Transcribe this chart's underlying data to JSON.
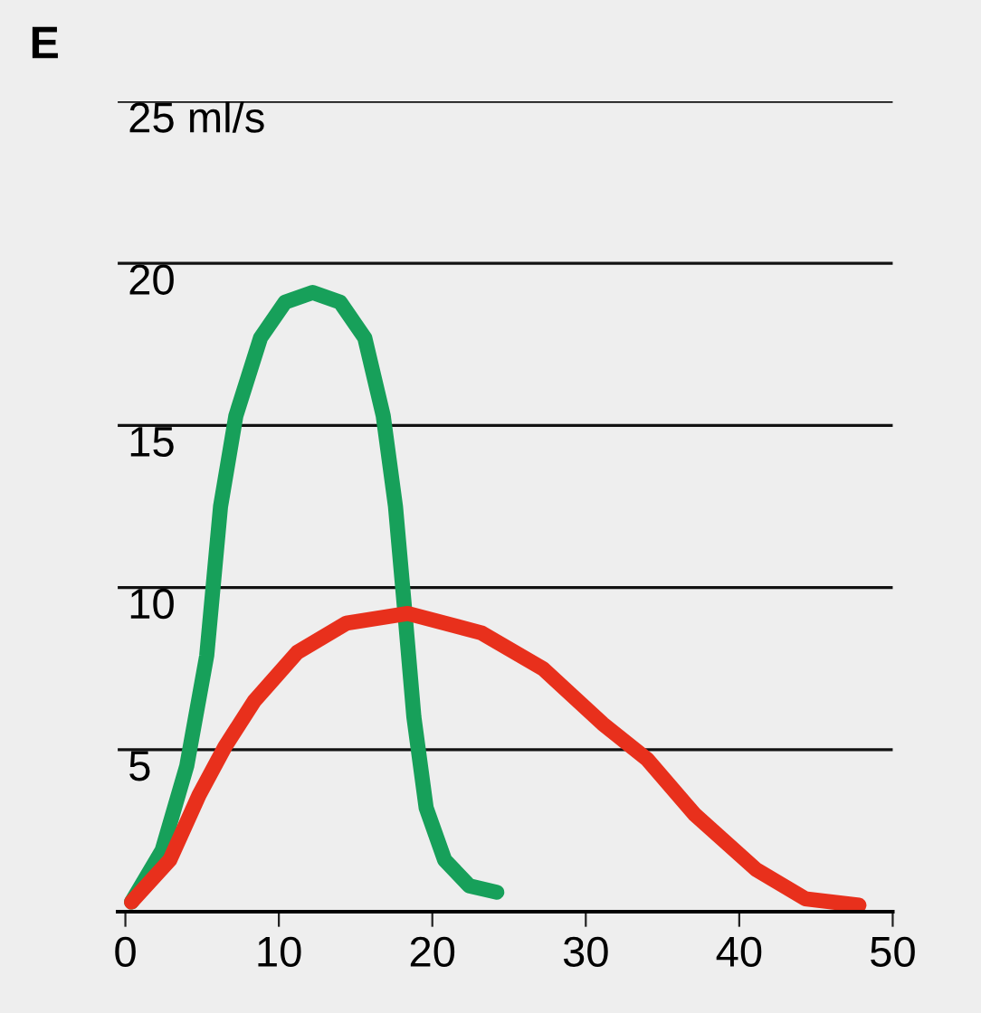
{
  "chart_data": {
    "type": "line",
    "title": "E",
    "xlim": [
      -0.5,
      50
    ],
    "xticks": [
      0,
      10,
      20,
      30,
      40,
      50
    ],
    "ylim": [
      0,
      25
    ],
    "yticks": [
      5,
      10,
      15,
      20,
      {
        "value": 25,
        "label": "25 ml/s"
      }
    ],
    "grid": "y",
    "legend": false,
    "marker": "none",
    "line_style": "solid",
    "series": [
      {
        "color": "#17a05a",
        "x": [
          0.4,
          2.4,
          4.0,
          5.3,
          6.2,
          7.2,
          8.8,
          10.4,
          12.2,
          14.0,
          15.6,
          16.8,
          17.6,
          18.2,
          18.8,
          19.6,
          20.8,
          22.4,
          24.2
        ],
        "values": [
          0.3,
          1.9,
          4.5,
          7.9,
          12.5,
          15.3,
          17.7,
          18.8,
          19.1,
          18.8,
          17.7,
          15.3,
          12.5,
          9.3,
          6.0,
          3.2,
          1.6,
          0.8,
          0.6
        ]
      },
      {
        "color": "#e8301c",
        "x": [
          0.4,
          2.9,
          4.8,
          6.5,
          8.4,
          11.2,
          14.4,
          18.4,
          23.2,
          27.2,
          31.1,
          34.0,
          37.1,
          41.1,
          44.3,
          47.8
        ],
        "values": [
          0.3,
          1.6,
          3.6,
          5.1,
          6.5,
          8.0,
          8.9,
          9.2,
          8.6,
          7.5,
          5.8,
          4.7,
          3.0,
          1.3,
          0.4,
          0.2
        ]
      }
    ]
  }
}
